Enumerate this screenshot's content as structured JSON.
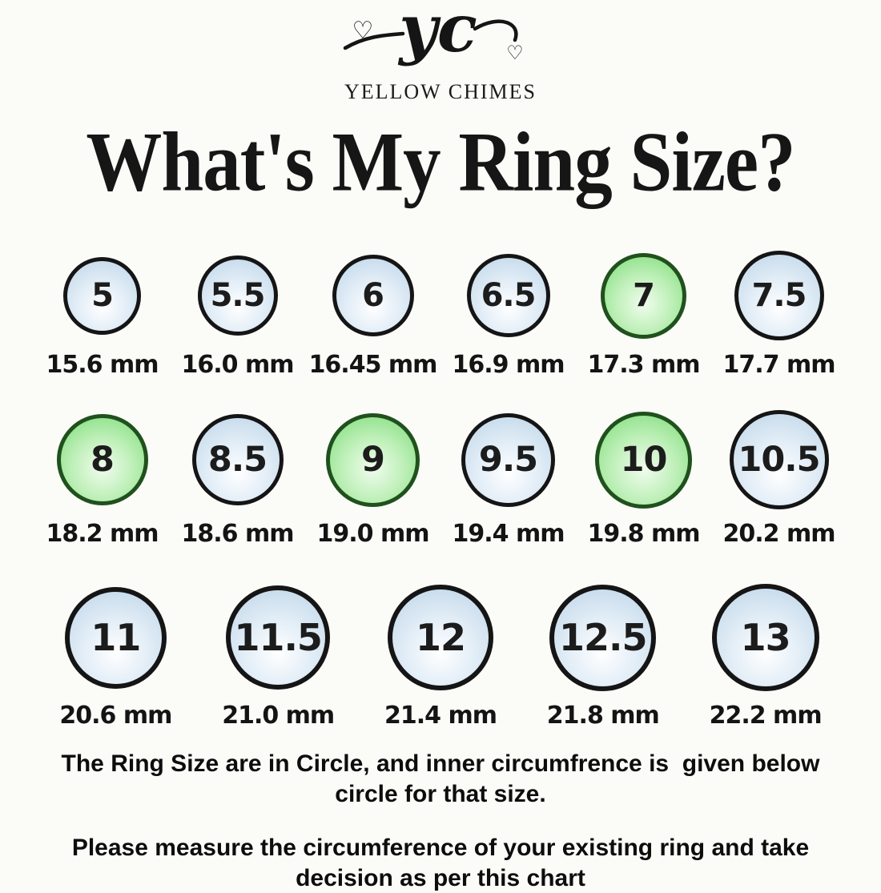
{
  "brand": {
    "monogram": "yc",
    "name": "YELLOW CHIMES"
  },
  "icons": {
    "heart": "♡"
  },
  "title": "What's My Ring Size?",
  "colors": {
    "background": "#fbfbf8",
    "text": "#161616",
    "outline": "#151515",
    "outline_green": "#20511d",
    "circle_blue_edge": "#c4d9ea",
    "circle_blue_mid": "#e3eef7",
    "circle_blue_center": "#ffffff",
    "circle_green_edge": "#86df82",
    "circle_green_mid": "#c0f0ba",
    "circle_green_center": "#f0fcee"
  },
  "rings": {
    "rows": [
      {
        "items": [
          {
            "size": "5",
            "circumference": "15.6 mm",
            "variant": "blue",
            "diameter": 97
          },
          {
            "size": "5.5",
            "circumference": "16.0 mm",
            "variant": "blue",
            "diameter": 100
          },
          {
            "size": "6",
            "circumference": "16.45 mm",
            "variant": "blue",
            "diameter": 102
          },
          {
            "size": "6.5",
            "circumference": "16.9 mm",
            "variant": "blue",
            "diameter": 104
          },
          {
            "size": "7",
            "circumference": "17.3 mm",
            "variant": "green",
            "diameter": 107
          },
          {
            "size": "7.5",
            "circumference": "17.7 mm",
            "variant": "blue",
            "diameter": 112
          }
        ]
      },
      {
        "items": [
          {
            "size": "8",
            "circumference": "18.2 mm",
            "variant": "green",
            "diameter": 114
          },
          {
            "size": "8.5",
            "circumference": "18.6 mm",
            "variant": "blue",
            "diameter": 114
          },
          {
            "size": "9",
            "circumference": "19.0 mm",
            "variant": "green",
            "diameter": 117
          },
          {
            "size": "9.5",
            "circumference": "19.4 mm",
            "variant": "blue",
            "diameter": 117
          },
          {
            "size": "10",
            "circumference": "19.8 mm",
            "variant": "green",
            "diameter": 121
          },
          {
            "size": "10.5",
            "circumference": "20.2 mm",
            "variant": "blue",
            "diameter": 124
          }
        ]
      },
      {
        "items": [
          {
            "size": "11",
            "circumference": "20.6 mm",
            "variant": "blue",
            "diameter": 127
          },
          {
            "size": "11.5",
            "circumference": "21.0 mm",
            "variant": "blue",
            "diameter": 130
          },
          {
            "size": "12",
            "circumference": "21.4 mm",
            "variant": "blue",
            "diameter": 132
          },
          {
            "size": "12.5",
            "circumference": "21.8 mm",
            "variant": "blue",
            "diameter": 133
          },
          {
            "size": "13",
            "circumference": "22.2 mm",
            "variant": "blue",
            "diameter": 134
          }
        ]
      }
    ]
  },
  "notes": [
    {
      "lines": [
        "The Ring Size are in Circle, and inner circumfrence is  given below",
        "circle for that size."
      ]
    },
    {
      "lines": [
        "Please measure the circumference of your existing ring and take",
        "decision as per this chart"
      ]
    }
  ],
  "chart_data": {
    "type": "table",
    "title": "What's My Ring Size?",
    "columns": [
      "ring_size",
      "inner_circumference_mm"
    ],
    "rows": [
      [
        5,
        15.6
      ],
      [
        5.5,
        16.0
      ],
      [
        6,
        16.45
      ],
      [
        6.5,
        16.9
      ],
      [
        7,
        17.3
      ],
      [
        7.5,
        17.7
      ],
      [
        8,
        18.2
      ],
      [
        8.5,
        18.6
      ],
      [
        9,
        19.0
      ],
      [
        9.5,
        19.4
      ],
      [
        10,
        19.8
      ],
      [
        10.5,
        20.2
      ],
      [
        11,
        20.6
      ],
      [
        11.5,
        21.0
      ],
      [
        12,
        21.4
      ],
      [
        12.5,
        21.8
      ],
      [
        13,
        22.2
      ]
    ],
    "highlighted_sizes_green": [
      7,
      8,
      9,
      10
    ],
    "layout": "3 rows of circles; circle diameter grows with ring size; circumference labeled under each circle"
  }
}
